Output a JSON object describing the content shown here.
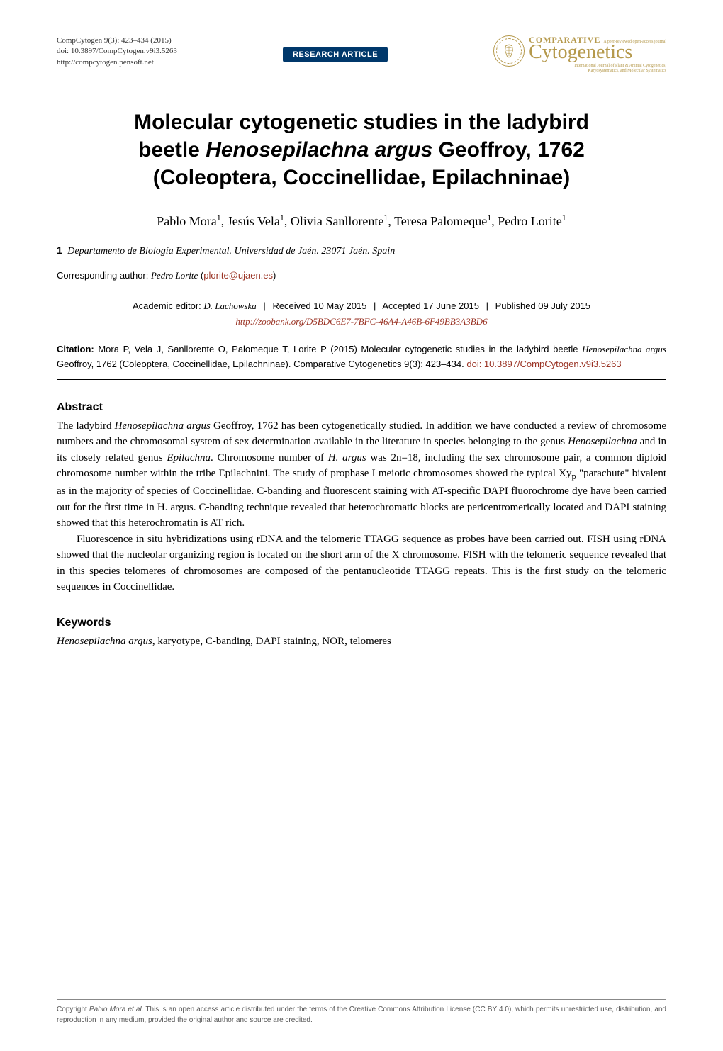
{
  "header": {
    "journal_ref": "CompCytogen 9(3): 423–434 (2015)",
    "doi": "doi: 10.3897/CompCytogen.v9i3.5263",
    "url": "http://compcytogen.pensoft.net",
    "badge": "RESEARCH ARTICLE",
    "brand_top": "COMPARATIVE",
    "brand_oa": "A peer-reviewed open-access journal",
    "brand_main": "Cytogenetics",
    "brand_sub1": "International Journal of Plant & Animal Cytogenetics,",
    "brand_sub2": "Karyosystematics, and Molecular Systematics"
  },
  "title_line1": "Molecular cytogenetic studies in the ladybird",
  "title_line2_pre": "beetle ",
  "title_line2_ital": "Henosepilachna argus",
  "title_line2_post": " Geoffroy, 1762",
  "title_line3": "(Coleoptera, Coccinellidae, Epilachninae)",
  "authors_html": "Pablo Mora<sup>1</sup>, Jesús Vela<sup>1</sup>, Olivia Sanllorente<sup>1</sup>, Teresa Palomeque<sup>1</sup>, Pedro Lorite<sup>1</sup>",
  "affiliation": {
    "num": "1",
    "text": "Departamento de Biología Experimental. Universidad de Jaén. 23071 Jaén. Spain"
  },
  "corresponding": {
    "label": "Corresponding author:",
    "name": "Pedro Lorite",
    "email": "plorite@ujaen.es"
  },
  "editor_row": {
    "editor_label": "Academic editor:",
    "editor_name": "D. Lachowska",
    "received": "Received 10 May 2015",
    "accepted": "Accepted 17 June 2015",
    "published": "Published 09 July 2015"
  },
  "zoobank": "http://zoobank.org/D5BDC6E7-7BFC-46A4-A46B-6F49BB3A3BD6",
  "citation": {
    "label": "Citation:",
    "text_pre": " Mora P, Vela J, Sanllorente O, Palomeque T, Lorite P (2015) Molecular cytogenetic studies in the ladybird beetle ",
    "ital": "Henosepilachna argus",
    "text_post": " Geoffroy, 1762 (Coleoptera, Coccinellidae, Epilachninae). Comparative Cytogenetics 9(3): 423–434. ",
    "doi": "doi: 10.3897/CompCytogen.v9i3.5263"
  },
  "abstract": {
    "heading": "Abstract",
    "p1_html": "The ladybird <i>Henosepilachna argus</i> Geoffroy, 1762 has been cytogenetically studied. In addition we have conducted a review of chromosome numbers and the chromosomal system of sex determination available in the literature in species belonging to the genus <i>Henosepilachna</i> and in its closely related genus <i>Epilachna</i>. Chromosome number of <i>H. argus</i> was 2n=18, including the sex chromosome pair, a common diploid chromosome number within the tribe Epilachnini. The study of prophase I meiotic chromosomes showed the typical Xy<sub>p</sub> \"parachute\" bivalent as in the majority of species of Coccinellidae. C-banding and fluorescent staining with AT-specific DAPI fluorochrome dye have been carried out for the first time in H. argus. C-banding technique revealed that heterochromatic blocks are pericentromerically located and DAPI staining showed that this heterochromatin is AT rich.",
    "p2_html": "Fluorescence in situ hybridizations using rDNA and the telomeric TTAGG sequence as probes have been carried out. FISH using rDNA showed that the nucleolar organizing region is located on the short arm of the X chromosome. FISH with the telomeric sequence revealed that in this species telomeres of chromosomes are composed of the pentanucleotide TTAGG repeats. This is the first study on the telomeric sequences in Coccinellidae."
  },
  "keywords": {
    "heading": "Keywords",
    "text_html": "<i>Henosepilachna argus</i>, karyotype, C-banding, DAPI staining, NOR, telomeres"
  },
  "footer": {
    "text_pre": "Copyright ",
    "text_ital": "Pablo Mora et al.",
    "text_post": " This is an open access article distributed under the terms of the Creative Commons Attribution License (CC BY 4.0), which permits unrestricted use, distribution, and reproduction in any medium, provided the original author and source are credited."
  },
  "colors": {
    "badge_bg": "#00386b",
    "brand": "#b5994c",
    "link": "#9a3324"
  }
}
